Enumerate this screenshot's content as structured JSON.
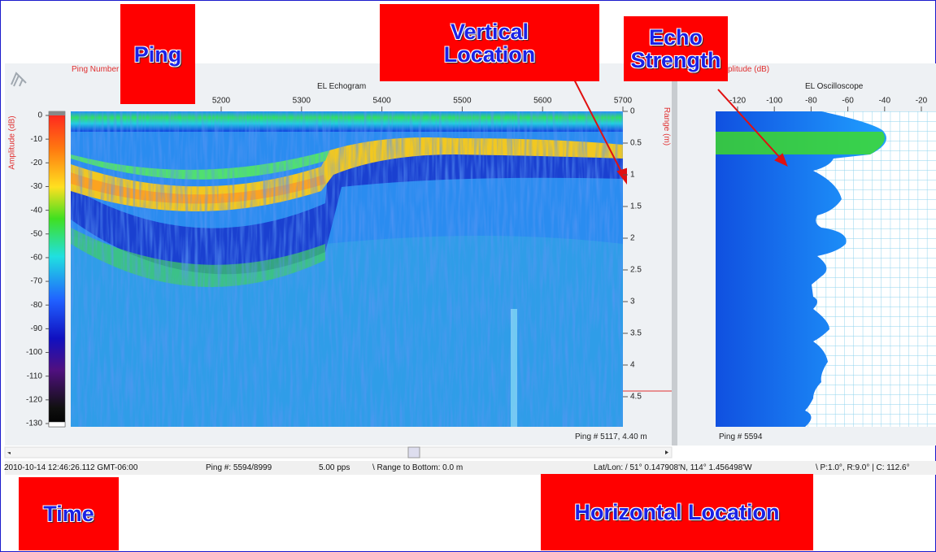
{
  "annotations": {
    "ping": "Ping",
    "vertical_location": "Vertical Location",
    "echo_strength": "Echo Strength",
    "time": "Time",
    "horizontal_location": "Horizontal Location"
  },
  "echogram": {
    "title": "EL Echogram",
    "x_axis_label": "Ping Number",
    "xticks": [
      5200,
      5300,
      5400,
      5500,
      5600,
      5700
    ],
    "color_axis_label": "Amplitude (dB)",
    "color_ticks": [
      0,
      -10,
      -20,
      -30,
      -40,
      -50,
      -60,
      -70,
      -80,
      -90,
      -100,
      -110,
      -120,
      -130
    ],
    "range_axis_label": "Range (m)",
    "range_ticks": [
      0,
      0.5,
      1,
      1.5,
      2,
      2.5,
      3,
      3.5,
      4,
      4.5
    ],
    "cursor_readout": "Ping # 5117, 4.40 m"
  },
  "oscilloscope": {
    "title": "EL Oscilloscope",
    "x_axis_label": "Amplitude (dB)",
    "xticks": [
      -120,
      -100,
      -80,
      -60,
      -40,
      -20
    ],
    "readout": "Ping # 5594"
  },
  "status_bar": [
    "2010-10-14 12:46:26.112 GMT-06:00",
    "Ping #: 5594/8999",
    "5.00 pps",
    "\\ Range to Bottom: 0.0 m",
    "Lat/Lon: / 51° 0.147908'N, 114° 1.456498'W",
    "\\ P:1.0°, R:9.0°  |  C: 112.6°"
  ]
}
